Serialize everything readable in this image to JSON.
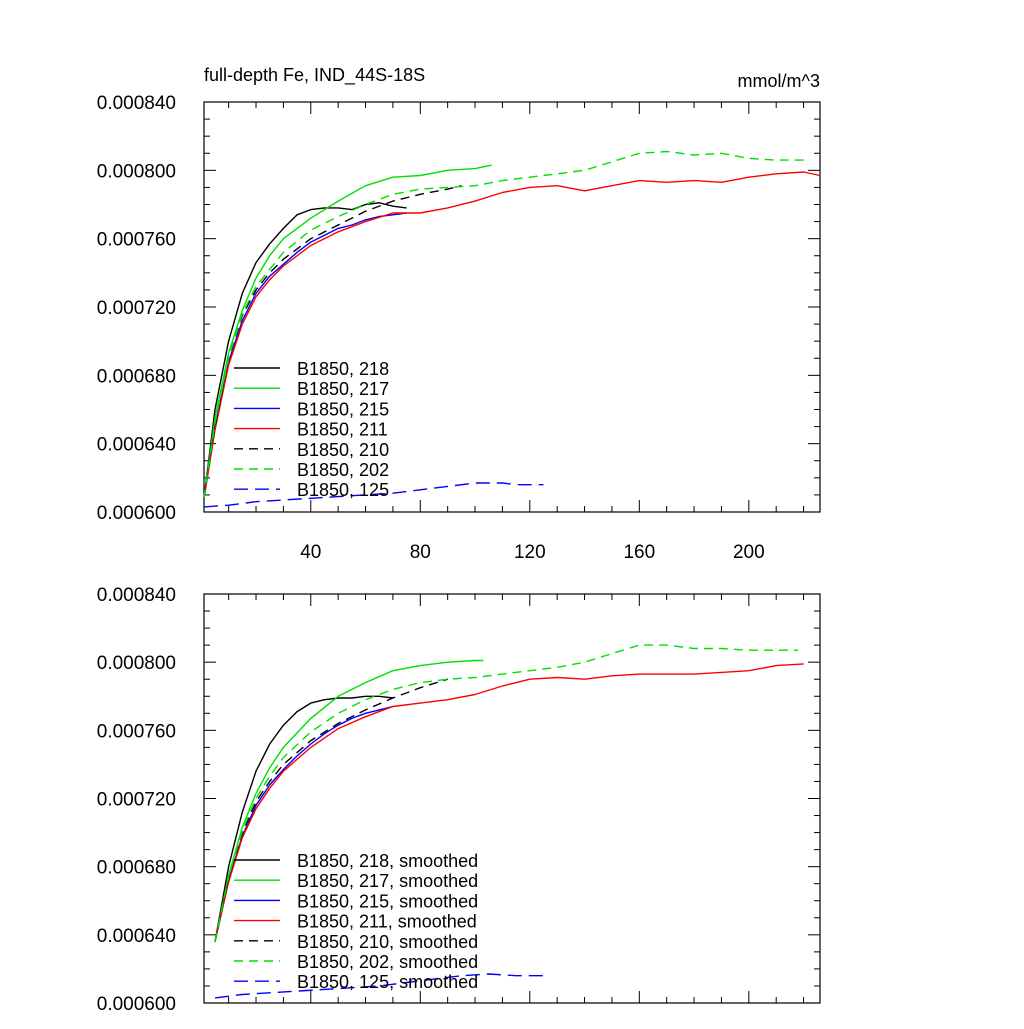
{
  "figure": {
    "title_left": "full-depth Fe, IND_44S-18S",
    "title_right": "mmol/m^3"
  },
  "chart_data": [
    {
      "type": "line",
      "title": "full-depth Fe, IND_44S-18S",
      "units": "mmol/m^3",
      "xlim": [
        1,
        226
      ],
      "ylim": [
        0.0006,
        0.00084
      ],
      "x_ticks": [
        40,
        80,
        120,
        160,
        200
      ],
      "x_tick_labels": [
        "40",
        "80",
        "120",
        "160",
        "200"
      ],
      "y_ticks": [
        0.0006,
        0.00064,
        0.00068,
        0.00072,
        0.00076,
        0.0008,
        0.00084
      ],
      "y_tick_labels": [
        "0.000600",
        "0.000640",
        "0.000680",
        "0.000720",
        "0.000760",
        "0.000800",
        "0.000840"
      ],
      "legend_position": "lower-left",
      "series": [
        {
          "name": "B1850, 218",
          "color": "#000000",
          "dash": "solid",
          "x": [
            1,
            5,
            10,
            15,
            20,
            25,
            30,
            35,
            40,
            45,
            50,
            55,
            60,
            65,
            70,
            75
          ],
          "y": [
            0.000608,
            0.00066,
            0.0007,
            0.000728,
            0.000746,
            0.000757,
            0.000766,
            0.000774,
            0.000777,
            0.000778,
            0.000778,
            0.000777,
            0.00078,
            0.000781,
            0.000779,
            0.000778
          ]
        },
        {
          "name": "B1850, 217",
          "color": "#00e000",
          "dash": "solid",
          "x": [
            1,
            5,
            10,
            15,
            20,
            25,
            30,
            40,
            50,
            60,
            70,
            80,
            90,
            100,
            106
          ],
          "y": [
            0.000608,
            0.000655,
            0.000693,
            0.000718,
            0.000737,
            0.00075,
            0.00076,
            0.000772,
            0.000782,
            0.000791,
            0.000796,
            0.000797,
            0.0008,
            0.000801,
            0.000803
          ]
        },
        {
          "name": "B1850, 215",
          "color": "#0000ff",
          "dash": "solid",
          "x": [
            1,
            5,
            10,
            15,
            20,
            25,
            30,
            35,
            40,
            45,
            50,
            55,
            60,
            65,
            70,
            75
          ],
          "y": [
            0.000608,
            0.00065,
            0.000688,
            0.000712,
            0.000728,
            0.000738,
            0.000745,
            0.000752,
            0.000758,
            0.000762,
            0.000766,
            0.000768,
            0.000771,
            0.000773,
            0.000774,
            0.000775
          ]
        },
        {
          "name": "B1850, 211",
          "color": "#ff0000",
          "dash": "solid",
          "x": [
            1,
            5,
            10,
            15,
            20,
            25,
            30,
            40,
            50,
            60,
            70,
            80,
            90,
            100,
            110,
            120,
            130,
            140,
            150,
            160,
            170,
            180,
            190,
            200,
            210,
            220,
            226
          ],
          "y": [
            0.000608,
            0.000648,
            0.000686,
            0.00071,
            0.000726,
            0.000736,
            0.000744,
            0.000756,
            0.000764,
            0.00077,
            0.000775,
            0.000775,
            0.000778,
            0.000782,
            0.000787,
            0.00079,
            0.000791,
            0.000788,
            0.000791,
            0.000794,
            0.000793,
            0.000794,
            0.000793,
            0.000796,
            0.000798,
            0.000799,
            0.000797
          ]
        },
        {
          "name": "B1850, 210",
          "color": "#000000",
          "dash": "dash",
          "x": [
            1,
            5,
            10,
            15,
            20,
            25,
            30,
            40,
            50,
            60,
            70,
            80,
            90,
            95
          ],
          "y": [
            0.000608,
            0.00065,
            0.00069,
            0.000715,
            0.00073,
            0.00074,
            0.000748,
            0.00076,
            0.000768,
            0.000776,
            0.000782,
            0.000786,
            0.000789,
            0.000791
          ]
        },
        {
          "name": "B1850, 202",
          "color": "#00e000",
          "dash": "dash",
          "x": [
            1,
            5,
            10,
            15,
            20,
            25,
            30,
            40,
            50,
            60,
            70,
            80,
            90,
            100,
            110,
            120,
            130,
            140,
            150,
            160,
            170,
            180,
            190,
            200,
            210,
            220
          ],
          "y": [
            0.000608,
            0.000652,
            0.00069,
            0.000716,
            0.000732,
            0.000742,
            0.000752,
            0.000765,
            0.000773,
            0.00078,
            0.000786,
            0.000789,
            0.00079,
            0.000791,
            0.000794,
            0.000796,
            0.000798,
            0.0008,
            0.000805,
            0.00081,
            0.000811,
            0.000809,
            0.00081,
            0.000807,
            0.000806,
            0.000806
          ]
        },
        {
          "name": "B1850, 125",
          "color": "#0000ff",
          "dash": "longdash",
          "x": [
            1,
            10,
            20,
            30,
            40,
            50,
            60,
            70,
            80,
            90,
            100,
            105,
            110,
            115,
            120,
            125
          ],
          "y": [
            0.000603,
            0.000604,
            0.000606,
            0.000607,
            0.000608,
            0.000609,
            0.00061,
            0.000611,
            0.000613,
            0.000615,
            0.000617,
            0.000617,
            0.000617,
            0.000616,
            0.000616,
            0.000616
          ]
        }
      ]
    },
    {
      "type": "line",
      "xlim": [
        1,
        226
      ],
      "ylim": [
        0.0006,
        0.00084
      ],
      "x_ticks": [
        40,
        80,
        120,
        160,
        200
      ],
      "y_ticks": [
        0.0006,
        0.00064,
        0.00068,
        0.00072,
        0.00076,
        0.0008,
        0.00084
      ],
      "y_tick_labels": [
        "0.000600",
        "0.000640",
        "0.000680",
        "0.000720",
        "0.000760",
        "0.000800",
        "0.000840"
      ],
      "legend_position": "lower-left",
      "series": [
        {
          "name": "B1850, 218, smoothed",
          "color": "#000000",
          "dash": "solid",
          "x": [
            5,
            10,
            15,
            20,
            25,
            30,
            35,
            40,
            45,
            50,
            55,
            60,
            65,
            70
          ],
          "y": [
            0.000636,
            0.00068,
            0.000712,
            0.000736,
            0.000752,
            0.000763,
            0.000771,
            0.000776,
            0.000778,
            0.000779,
            0.000779,
            0.00078,
            0.00078,
            0.000779
          ]
        },
        {
          "name": "B1850, 217, smoothed",
          "color": "#00e000",
          "dash": "solid",
          "x": [
            5,
            10,
            15,
            20,
            25,
            30,
            40,
            50,
            60,
            70,
            80,
            90,
            100,
            103
          ],
          "y": [
            0.000636,
            0.000675,
            0.000703,
            0.000723,
            0.000738,
            0.00075,
            0.000767,
            0.00078,
            0.000788,
            0.000795,
            0.000798,
            0.0008,
            0.000801,
            0.000801
          ]
        },
        {
          "name": "B1850, 215, smoothed",
          "color": "#0000ff",
          "dash": "solid",
          "x": [
            5,
            10,
            15,
            20,
            25,
            30,
            35,
            40,
            45,
            50,
            55,
            60,
            65,
            70
          ],
          "y": [
            0.000636,
            0.000672,
            0.000698,
            0.000716,
            0.000728,
            0.000737,
            0.000745,
            0.000752,
            0.000758,
            0.000763,
            0.000767,
            0.00077,
            0.000772,
            0.000774
          ]
        },
        {
          "name": "B1850, 211, smoothed",
          "color": "#ff0000",
          "dash": "solid",
          "x": [
            5,
            10,
            15,
            20,
            25,
            30,
            40,
            50,
            60,
            70,
            80,
            90,
            100,
            110,
            120,
            130,
            140,
            150,
            160,
            170,
            180,
            190,
            200,
            210,
            220
          ],
          "y": [
            0.000636,
            0.000671,
            0.000697,
            0.000714,
            0.000726,
            0.000736,
            0.00075,
            0.000761,
            0.000768,
            0.000774,
            0.000776,
            0.000778,
            0.000781,
            0.000786,
            0.00079,
            0.000791,
            0.00079,
            0.000792,
            0.000793,
            0.000793,
            0.000793,
            0.000794,
            0.000795,
            0.000798,
            0.000799
          ]
        },
        {
          "name": "B1850, 210, smoothed",
          "color": "#000000",
          "dash": "dash",
          "x": [
            5,
            10,
            15,
            20,
            25,
            30,
            40,
            50,
            60,
            70,
            80,
            90
          ],
          "y": [
            0.000636,
            0.000673,
            0.0007,
            0.000718,
            0.00073,
            0.00074,
            0.000754,
            0.000764,
            0.000772,
            0.000779,
            0.000785,
            0.00079
          ]
        },
        {
          "name": "B1850, 202, smoothed",
          "color": "#00e000",
          "dash": "dash",
          "x": [
            5,
            10,
            15,
            20,
            25,
            30,
            40,
            50,
            60,
            70,
            80,
            90,
            100,
            110,
            120,
            130,
            140,
            150,
            160,
            170,
            180,
            190,
            200,
            210,
            218
          ],
          "y": [
            0.000636,
            0.000674,
            0.000701,
            0.00072,
            0.000733,
            0.000744,
            0.000759,
            0.00077,
            0.000778,
            0.000784,
            0.000788,
            0.00079,
            0.000791,
            0.000793,
            0.000795,
            0.000797,
            0.0008,
            0.000805,
            0.00081,
            0.00081,
            0.000808,
            0.000808,
            0.000807,
            0.000807,
            0.000807
          ]
        },
        {
          "name": "B1850, 125, smoothed",
          "color": "#0000ff",
          "dash": "longdash",
          "x": [
            5,
            15,
            25,
            35,
            45,
            55,
            65,
            75,
            85,
            95,
            105,
            115,
            125
          ],
          "y": [
            0.000603,
            0.000605,
            0.000606,
            0.000607,
            0.000608,
            0.000609,
            0.00061,
            0.000612,
            0.000614,
            0.000616,
            0.000617,
            0.000616,
            0.000616
          ]
        }
      ]
    }
  ]
}
